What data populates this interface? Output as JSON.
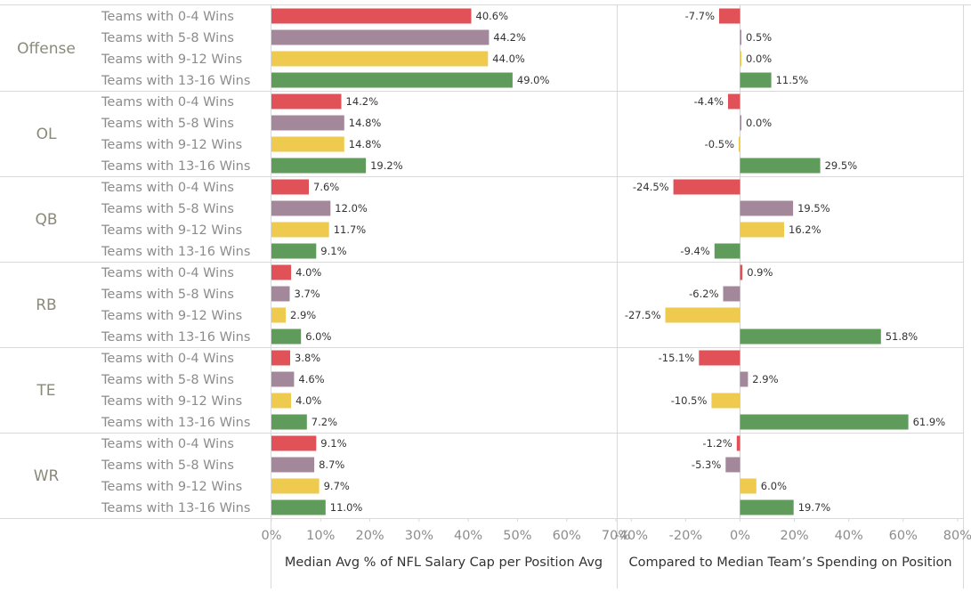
{
  "chart_data": {
    "type": "bar",
    "orientation": "horizontal",
    "groups": [
      "Offense",
      "OL",
      "QB",
      "RB",
      "TE",
      "WR"
    ],
    "categories": [
      "Teams with 0-4 Wins",
      "Teams with 5-8 Wins",
      "Teams with 9-12 Wins",
      "Teams with 13-16 Wins"
    ],
    "category_colors": [
      "#e05258",
      "#a3889c",
      "#eecb4f",
      "#5f9b5b"
    ],
    "panels": [
      {
        "xlabel": "Median Avg % of NFL Salary Cap per Position Avg",
        "xlim": [
          0,
          70
        ],
        "ticks": [
          0,
          10,
          20,
          30,
          40,
          50,
          60,
          70
        ],
        "tick_labels": [
          "0%",
          "10%",
          "20%",
          "30%",
          "40%",
          "50%",
          "60%",
          "70%"
        ],
        "values": {
          "Offense": [
            40.6,
            44.2,
            44.0,
            49.0
          ],
          "OL": [
            14.2,
            14.8,
            14.8,
            19.2
          ],
          "QB": [
            7.6,
            12.0,
            11.7,
            9.1
          ],
          "RB": [
            4.0,
            3.7,
            2.9,
            6.0
          ],
          "TE": [
            3.8,
            4.6,
            4.0,
            7.2
          ],
          "WR": [
            9.1,
            8.7,
            9.7,
            11.0
          ]
        },
        "labels": {
          "Offense": [
            "40.6%",
            "44.2%",
            "44.0%",
            "49.0%"
          ],
          "OL": [
            "14.2%",
            "14.8%",
            "14.8%",
            "19.2%"
          ],
          "QB": [
            "7.6%",
            "12.0%",
            "11.7%",
            "9.1%"
          ],
          "RB": [
            "4.0%",
            "3.7%",
            "2.9%",
            "6.0%"
          ],
          "TE": [
            "3.8%",
            "4.6%",
            "4.0%",
            "7.2%"
          ],
          "WR": [
            "9.1%",
            "8.7%",
            "9.7%",
            "11.0%"
          ]
        }
      },
      {
        "xlabel": "Compared to Median Team’s Spending on Position",
        "xlim": [
          -45,
          82
        ],
        "ticks": [
          -40,
          -20,
          0,
          20,
          40,
          60,
          80
        ],
        "tick_labels": [
          "-40%",
          "-20%",
          "0%",
          "20%",
          "40%",
          "60%",
          "80%"
        ],
        "values": {
          "Offense": [
            -7.7,
            0.5,
            0.0,
            11.5
          ],
          "OL": [
            -4.4,
            0.0,
            -0.5,
            29.5
          ],
          "QB": [
            -24.5,
            19.5,
            16.2,
            -9.4
          ],
          "RB": [
            0.9,
            -6.2,
            -27.5,
            51.8
          ],
          "TE": [
            -15.1,
            2.9,
            -10.5,
            61.9
          ],
          "WR": [
            -1.2,
            -5.3,
            6.0,
            19.7
          ]
        },
        "labels": {
          "Offense": [
            "-7.7%",
            "0.5%",
            "0.0%",
            "11.5%"
          ],
          "OL": [
            "-4.4%",
            "0.0%",
            "-0.5%",
            "29.5%"
          ],
          "QB": [
            "-24.5%",
            "19.5%",
            "16.2%",
            "-9.4%"
          ],
          "RB": [
            "0.9%",
            "-6.2%",
            "-27.5%",
            "51.8%"
          ],
          "TE": [
            "-15.1%",
            "2.9%",
            "-10.5%",
            "61.9%"
          ],
          "WR": [
            "-1.2%",
            "-5.3%",
            "6.0%",
            "19.7%"
          ]
        }
      }
    ],
    "grid": false,
    "legend": "none"
  }
}
